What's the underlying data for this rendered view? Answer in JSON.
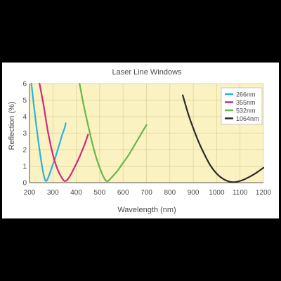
{
  "colors": {
    "background": "#000000",
    "figure": "#ffffff",
    "plot_area": "#fbf2c1",
    "grid": "#d9cf9a",
    "axis": "#555555"
  },
  "chart_data": {
    "type": "line",
    "title": "Laser Line Windows",
    "xlabel": "Wavelength (nm)",
    "ylabel": "Reflection (%)",
    "xlim": [
      200,
      1200
    ],
    "ylim": [
      0,
      6
    ],
    "xticks": [
      200,
      300,
      400,
      500,
      600,
      700,
      800,
      900,
      1000,
      1100,
      1200
    ],
    "yticks": [
      0,
      1,
      2,
      3,
      4,
      5,
      6
    ],
    "grid": true,
    "legend_position": "top-right",
    "series": [
      {
        "name": "266nm",
        "color": "#29b3e0",
        "x": [
          208,
          220,
          235,
          250,
          262,
          270,
          280,
          295,
          310,
          325,
          340,
          350,
          355
        ],
        "y": [
          6.0,
          4.5,
          2.8,
          1.3,
          0.4,
          0.1,
          0.3,
          0.9,
          1.5,
          2.2,
          2.9,
          3.3,
          3.6
        ]
      },
      {
        "name": "355nm",
        "color": "#d0297f",
        "x": [
          243,
          260,
          280,
          300,
          320,
          340,
          350,
          360,
          375,
          395,
          415,
          435,
          450
        ],
        "y": [
          6.0,
          4.7,
          3.0,
          1.7,
          0.8,
          0.25,
          0.1,
          0.15,
          0.45,
          1.0,
          1.6,
          2.3,
          2.9
        ]
      },
      {
        "name": "532nm",
        "color": "#6ab64a",
        "x": [
          414,
          430,
          450,
          470,
          490,
          510,
          525,
          535,
          550,
          575,
          600,
          625,
          650,
          675,
          700
        ],
        "y": [
          6.0,
          4.8,
          3.5,
          2.3,
          1.3,
          0.55,
          0.15,
          0.1,
          0.3,
          0.7,
          1.2,
          1.7,
          2.3,
          2.9,
          3.5
        ]
      },
      {
        "name": "1064nm",
        "color": "#2a2a2a",
        "x": [
          855,
          880,
          900,
          925,
          950,
          975,
          1000,
          1025,
          1050,
          1070,
          1085,
          1110,
          1140,
          1170,
          1200
        ],
        "y": [
          5.3,
          4.1,
          3.3,
          2.4,
          1.65,
          1.0,
          0.55,
          0.25,
          0.08,
          0.03,
          0.05,
          0.15,
          0.35,
          0.6,
          0.9
        ]
      }
    ]
  }
}
